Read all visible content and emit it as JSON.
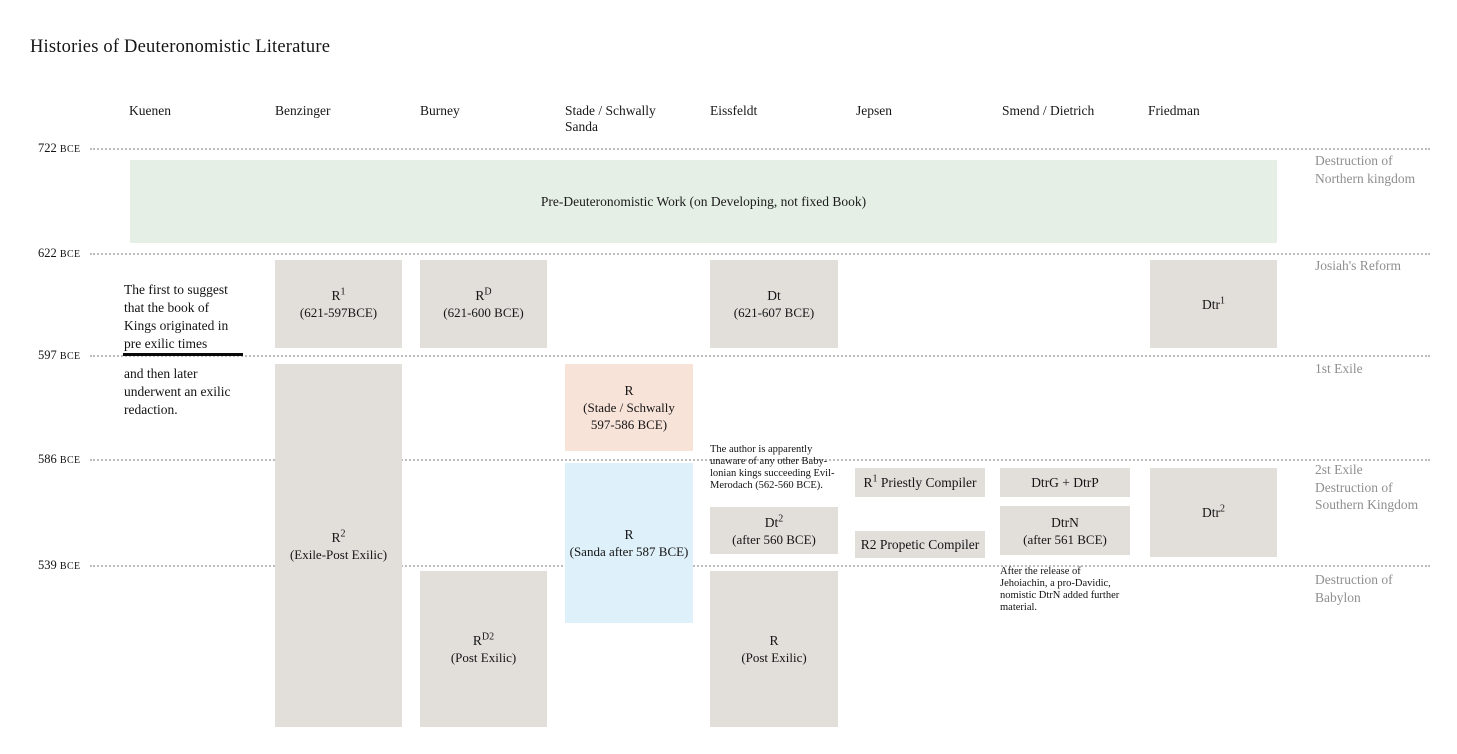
{
  "title": "Histories of Deuteronomistic Literature",
  "colors": {
    "band_green": "#e5efe5",
    "box_grey": "#e2dfdb",
    "box_pink": "#f8e3d9",
    "box_blue": "#def0f9"
  },
  "columns": [
    {
      "label": "Kuenen"
    },
    {
      "label": "Benzinger"
    },
    {
      "label": "Burney"
    },
    {
      "label": "Stade / Schwally\nSanda"
    },
    {
      "label": "Eissfeldt"
    },
    {
      "label": "Jepsen"
    },
    {
      "label": "Smend / Dietrich"
    },
    {
      "label": "Friedman"
    }
  ],
  "dates": [
    {
      "num": "722",
      "era": "BCE"
    },
    {
      "num": "622",
      "era": "BCE"
    },
    {
      "num": "597",
      "era": "BCE"
    },
    {
      "num": "586",
      "era": "BCE"
    },
    {
      "num": "539",
      "era": "BCE"
    }
  ],
  "events": [
    "Destruction of\nNorthern kingdom",
    "Josiah's Reform",
    "1st Exile",
    "2st Exile\nDestruction of\nSouthern Kingdom",
    "Destruction of\nBabylon"
  ],
  "band": {
    "label": "Pre-Deuteronomistic Work (on Developing, not fixed Book)"
  },
  "notes": {
    "kuenen_top": "The first to suggest\nthat the book of\nKings originated in\npre exilic times",
    "kuenen_bottom": "and then later\nunderwent an exilic\nredaction.",
    "eissfeldt": "The author is apparently\nunaware of any other Baby-\nlonian kings succeeding Evil-\nMerodach (562-560 BCE).",
    "smend": "After the release of\nJehoiachin, a pro-Davidic,\nnomistic DtrN added further\nmaterial."
  },
  "boxes": {
    "benzinger_r1": {
      "base": "R",
      "sup": "1",
      "after": "",
      "detail": "(621-597BCE)"
    },
    "burney_rd": {
      "base": "R",
      "sup": "D",
      "after": "",
      "detail": "(621-600 BCE)"
    },
    "eissfeldt_dt": {
      "base": "Dt",
      "sup": "",
      "after": "",
      "detail": "(621-607 BCE)"
    },
    "friedman_dtr1": {
      "base": "Dtr",
      "sup": "1",
      "after": "",
      "detail": ""
    },
    "benzinger_r2": {
      "base": "R",
      "sup": "2",
      "after": "",
      "detail": "(Exile-Post Exilic)"
    },
    "stade_schwally_r": {
      "base": "R",
      "sup": "",
      "after": "",
      "detail": "(Stade / Schwally\n597-586 BCE)"
    },
    "sanda_r": {
      "base": "R",
      "sup": "",
      "after": "",
      "detail": "(Sanda after 587 BCE)"
    },
    "eissfeldt_dt2": {
      "base": "Dt",
      "sup": "2",
      "after": "",
      "detail": "(after 560 BCE)"
    },
    "jepsen_r1": {
      "base": "R",
      "sup": "1",
      "after": " Priestly Compiler",
      "detail": ""
    },
    "jepsen_r2": {
      "base": "R2 Propetic Compiler",
      "sup": "",
      "after": "",
      "detail": ""
    },
    "smend_dtrg": {
      "base": "DtrG + DtrP",
      "sup": "",
      "after": "",
      "detail": ""
    },
    "smend_dtrn": {
      "base": "DtrN",
      "sup": "",
      "after": "",
      "detail": "(after 561 BCE)"
    },
    "friedman_dtr2": {
      "base": "Dtr",
      "sup": "2",
      "after": "",
      "detail": ""
    },
    "burney_rd2": {
      "base": "R",
      "sup": "D2",
      "after": "",
      "detail": "(Post Exilic)"
    },
    "eissfeldt_r": {
      "base": "R",
      "sup": "",
      "after": "",
      "detail": "(Post Exilic)"
    }
  }
}
